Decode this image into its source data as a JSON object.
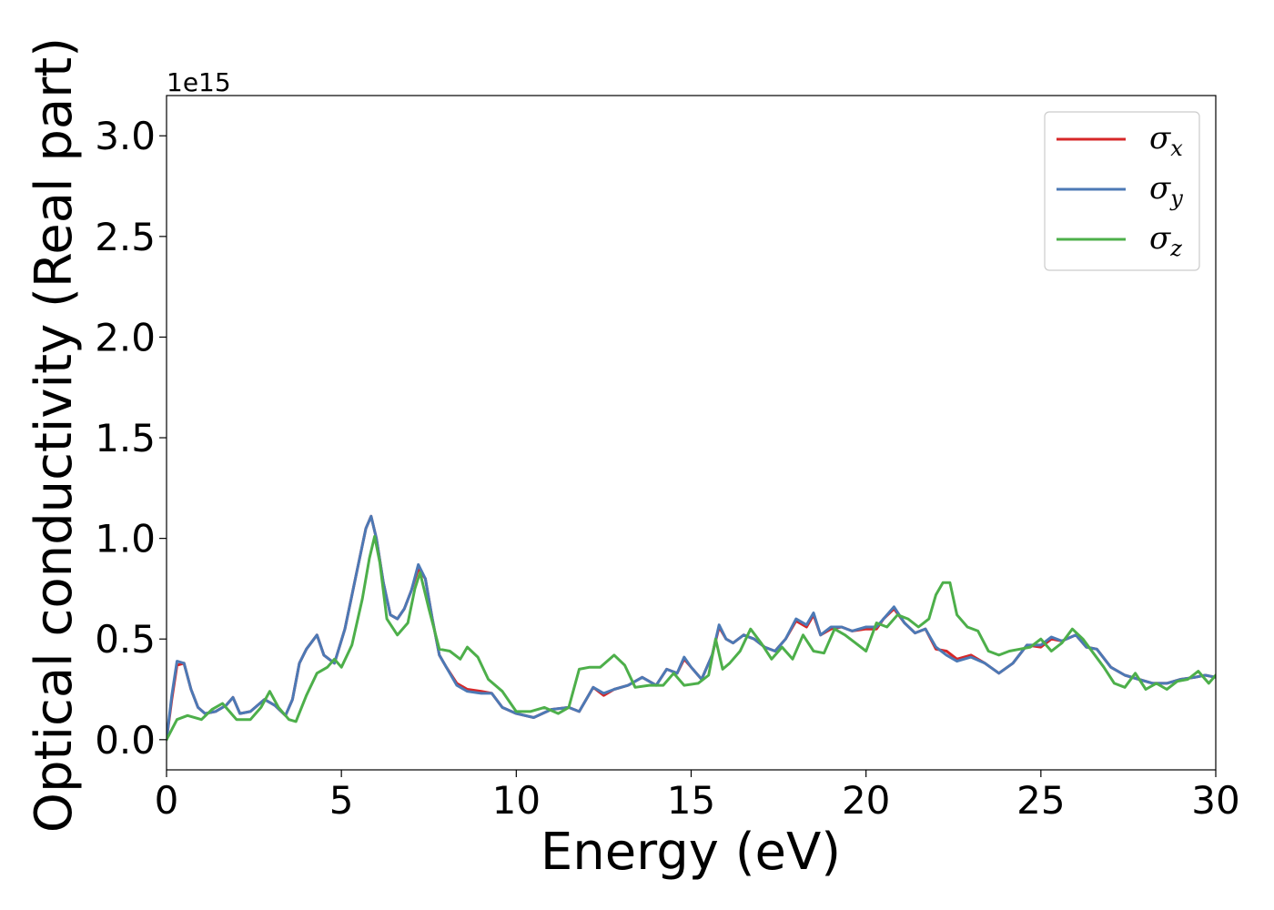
{
  "chart_data": {
    "type": "line",
    "xlabel": "Energy (eV)",
    "ylabel": "Optical conductivity (Real part)",
    "y_offset_label": "1e15",
    "xlim": [
      0,
      30
    ],
    "ylim": [
      -0.15,
      3.2
    ],
    "xticks": [
      0,
      5,
      10,
      15,
      20,
      25,
      30
    ],
    "xtick_labels": [
      "0",
      "5",
      "10",
      "15",
      "20",
      "25",
      "30"
    ],
    "yticks": [
      0.0,
      0.5,
      1.0,
      1.5,
      2.0,
      2.5,
      3.0
    ],
    "ytick_labels": [
      "0.0",
      "0.5",
      "1.0",
      "1.5",
      "2.0",
      "2.5",
      "3.0"
    ],
    "grid": false,
    "legend_position": "top-right",
    "series": [
      {
        "name": "σx",
        "legend_symbol": "σ",
        "legend_sub": "x",
        "color": "#d62728",
        "x": [
          0,
          0.15,
          0.3,
          0.5,
          0.7,
          0.9,
          1.1,
          1.4,
          1.7,
          1.9,
          2.1,
          2.4,
          2.8,
          3.1,
          3.4,
          3.6,
          3.8,
          4.0,
          4.3,
          4.5,
          4.8,
          5.1,
          5.4,
          5.7,
          5.85,
          6.0,
          6.2,
          6.4,
          6.6,
          6.8,
          7.0,
          7.2,
          7.4,
          7.6,
          7.8,
          8.0,
          8.3,
          8.6,
          9.0,
          9.3,
          9.6,
          10.0,
          10.5,
          11.0,
          11.5,
          11.8,
          12.2,
          12.5,
          12.8,
          13.2,
          13.6,
          14.0,
          14.3,
          14.6,
          14.8,
          15.0,
          15.3,
          15.6,
          15.8,
          16.0,
          16.2,
          16.5,
          16.8,
          17.1,
          17.4,
          17.7,
          18.0,
          18.3,
          18.5,
          18.7,
          19.0,
          19.3,
          19.6,
          20.0,
          20.3,
          20.5,
          20.8,
          21.1,
          21.4,
          21.7,
          22.0,
          22.3,
          22.6,
          23.0,
          23.4,
          23.8,
          24.2,
          24.6,
          25.0,
          25.3,
          25.6,
          26.0,
          26.3,
          26.6,
          27.0,
          27.4,
          27.8,
          28.2,
          28.6,
          29.0,
          29.4,
          29.7,
          30.0
        ],
        "y": [
          0.0,
          0.2,
          0.37,
          0.38,
          0.25,
          0.16,
          0.13,
          0.14,
          0.17,
          0.21,
          0.13,
          0.14,
          0.2,
          0.17,
          0.12,
          0.2,
          0.38,
          0.45,
          0.52,
          0.42,
          0.38,
          0.55,
          0.8,
          1.05,
          1.11,
          1.0,
          0.78,
          0.62,
          0.6,
          0.65,
          0.74,
          0.85,
          0.8,
          0.6,
          0.42,
          0.36,
          0.28,
          0.25,
          0.24,
          0.23,
          0.16,
          0.13,
          0.11,
          0.15,
          0.16,
          0.14,
          0.26,
          0.22,
          0.25,
          0.27,
          0.31,
          0.27,
          0.35,
          0.33,
          0.4,
          0.36,
          0.3,
          0.42,
          0.56,
          0.5,
          0.48,
          0.52,
          0.5,
          0.46,
          0.44,
          0.5,
          0.59,
          0.56,
          0.62,
          0.52,
          0.55,
          0.56,
          0.54,
          0.55,
          0.55,
          0.6,
          0.65,
          0.58,
          0.53,
          0.55,
          0.45,
          0.44,
          0.4,
          0.42,
          0.38,
          0.33,
          0.38,
          0.47,
          0.46,
          0.5,
          0.49,
          0.52,
          0.46,
          0.45,
          0.36,
          0.32,
          0.3,
          0.28,
          0.28,
          0.3,
          0.31,
          0.32,
          0.31
        ]
      },
      {
        "name": "σy",
        "legend_symbol": "σ",
        "legend_sub": "y",
        "color": "#4c79b5",
        "x": [
          0,
          0.15,
          0.3,
          0.5,
          0.7,
          0.9,
          1.1,
          1.4,
          1.7,
          1.9,
          2.1,
          2.4,
          2.8,
          3.1,
          3.4,
          3.6,
          3.8,
          4.0,
          4.3,
          4.5,
          4.8,
          5.1,
          5.4,
          5.7,
          5.85,
          6.0,
          6.2,
          6.4,
          6.6,
          6.8,
          7.0,
          7.2,
          7.4,
          7.6,
          7.8,
          8.0,
          8.3,
          8.6,
          9.0,
          9.3,
          9.6,
          10.0,
          10.5,
          11.0,
          11.5,
          11.8,
          12.2,
          12.5,
          12.8,
          13.2,
          13.6,
          14.0,
          14.3,
          14.6,
          14.8,
          15.0,
          15.3,
          15.6,
          15.8,
          16.0,
          16.2,
          16.5,
          16.8,
          17.1,
          17.4,
          17.7,
          18.0,
          18.3,
          18.5,
          18.7,
          19.0,
          19.3,
          19.6,
          20.0,
          20.3,
          20.5,
          20.8,
          21.1,
          21.4,
          21.7,
          22.0,
          22.3,
          22.6,
          23.0,
          23.4,
          23.8,
          24.2,
          24.6,
          25.0,
          25.3,
          25.6,
          26.0,
          26.3,
          26.6,
          27.0,
          27.4,
          27.8,
          28.2,
          28.6,
          29.0,
          29.4,
          29.7,
          30.0
        ],
        "y": [
          0.0,
          0.22,
          0.39,
          0.38,
          0.25,
          0.16,
          0.13,
          0.14,
          0.17,
          0.21,
          0.13,
          0.14,
          0.2,
          0.17,
          0.12,
          0.2,
          0.38,
          0.45,
          0.52,
          0.42,
          0.38,
          0.55,
          0.8,
          1.05,
          1.11,
          1.0,
          0.78,
          0.62,
          0.6,
          0.65,
          0.74,
          0.87,
          0.8,
          0.6,
          0.42,
          0.36,
          0.27,
          0.24,
          0.23,
          0.23,
          0.16,
          0.13,
          0.11,
          0.15,
          0.16,
          0.14,
          0.26,
          0.23,
          0.25,
          0.27,
          0.31,
          0.27,
          0.35,
          0.33,
          0.41,
          0.36,
          0.3,
          0.42,
          0.57,
          0.5,
          0.48,
          0.52,
          0.5,
          0.46,
          0.44,
          0.5,
          0.6,
          0.57,
          0.63,
          0.52,
          0.56,
          0.56,
          0.54,
          0.56,
          0.56,
          0.6,
          0.66,
          0.58,
          0.53,
          0.55,
          0.46,
          0.42,
          0.39,
          0.41,
          0.38,
          0.33,
          0.38,
          0.47,
          0.47,
          0.51,
          0.49,
          0.52,
          0.46,
          0.45,
          0.36,
          0.32,
          0.3,
          0.28,
          0.28,
          0.3,
          0.31,
          0.32,
          0.31
        ]
      },
      {
        "name": "σz",
        "legend_symbol": "σ",
        "legend_sub": "z",
        "color": "#4daf4a",
        "x": [
          0,
          0.3,
          0.6,
          1.0,
          1.3,
          1.6,
          2.0,
          2.4,
          2.7,
          2.95,
          3.2,
          3.5,
          3.7,
          4.0,
          4.3,
          4.6,
          4.8,
          5.0,
          5.3,
          5.6,
          5.8,
          5.95,
          6.1,
          6.3,
          6.6,
          6.9,
          7.1,
          7.25,
          7.5,
          7.8,
          8.1,
          8.4,
          8.6,
          8.9,
          9.2,
          9.6,
          10.0,
          10.4,
          10.8,
          11.2,
          11.5,
          11.8,
          12.1,
          12.4,
          12.8,
          13.1,
          13.4,
          13.8,
          14.2,
          14.5,
          14.8,
          15.2,
          15.5,
          15.7,
          15.9,
          16.1,
          16.4,
          16.7,
          17.0,
          17.3,
          17.6,
          17.9,
          18.2,
          18.5,
          18.8,
          19.1,
          19.4,
          19.7,
          20.0,
          20.3,
          20.6,
          20.9,
          21.2,
          21.5,
          21.8,
          22.0,
          22.2,
          22.4,
          22.6,
          22.9,
          23.2,
          23.5,
          23.8,
          24.1,
          24.4,
          24.7,
          25.0,
          25.3,
          25.6,
          25.9,
          26.2,
          26.5,
          26.8,
          27.1,
          27.4,
          27.7,
          28.0,
          28.3,
          28.6,
          28.9,
          29.2,
          29.5,
          29.8,
          30.0
        ],
        "y": [
          0.0,
          0.1,
          0.12,
          0.1,
          0.15,
          0.18,
          0.1,
          0.1,
          0.16,
          0.24,
          0.16,
          0.1,
          0.09,
          0.22,
          0.33,
          0.36,
          0.4,
          0.36,
          0.47,
          0.7,
          0.9,
          1.01,
          0.88,
          0.6,
          0.52,
          0.58,
          0.75,
          0.83,
          0.65,
          0.45,
          0.44,
          0.4,
          0.46,
          0.41,
          0.3,
          0.24,
          0.14,
          0.14,
          0.16,
          0.13,
          0.16,
          0.35,
          0.36,
          0.36,
          0.42,
          0.37,
          0.26,
          0.27,
          0.27,
          0.33,
          0.27,
          0.28,
          0.32,
          0.5,
          0.35,
          0.38,
          0.44,
          0.55,
          0.48,
          0.4,
          0.46,
          0.4,
          0.52,
          0.44,
          0.43,
          0.55,
          0.52,
          0.48,
          0.44,
          0.58,
          0.56,
          0.62,
          0.6,
          0.56,
          0.6,
          0.72,
          0.78,
          0.78,
          0.62,
          0.56,
          0.54,
          0.44,
          0.42,
          0.44,
          0.45,
          0.46,
          0.5,
          0.44,
          0.48,
          0.55,
          0.5,
          0.43,
          0.36,
          0.28,
          0.26,
          0.33,
          0.25,
          0.28,
          0.25,
          0.29,
          0.3,
          0.34,
          0.28,
          0.32
        ]
      }
    ]
  }
}
